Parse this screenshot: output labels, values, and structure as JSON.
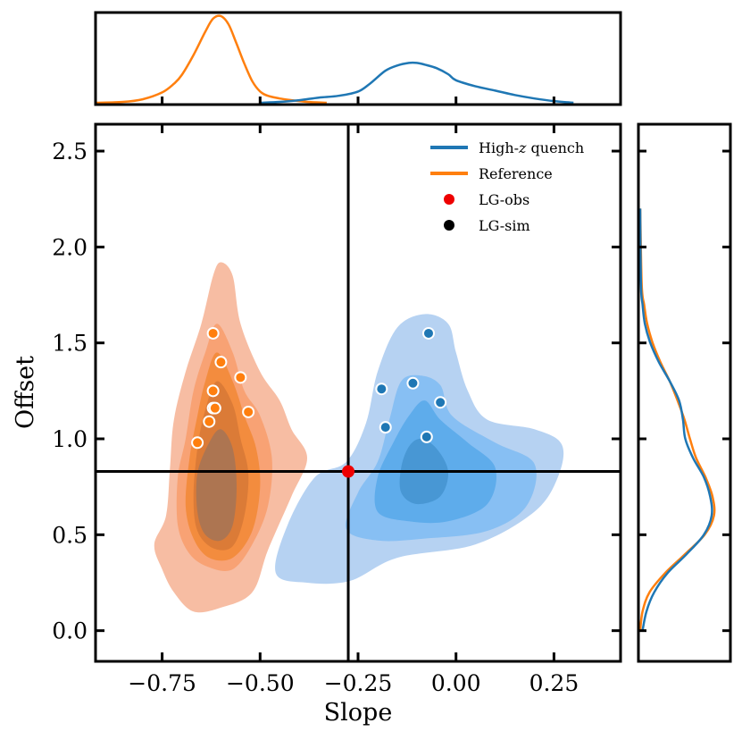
{
  "chart_data": {
    "type": "scatter",
    "xlabel": "Slope",
    "ylabel": "Offset",
    "xlim": [
      -0.92,
      0.42
    ],
    "ylim": [
      -0.16,
      2.64
    ],
    "x_ticks": [
      -0.75,
      -0.5,
      -0.25,
      0.0,
      0.25
    ],
    "x_tick_labels": [
      "−0.75",
      "−0.50",
      "−0.25",
      "0.00",
      "0.25"
    ],
    "y_ticks": [
      0.0,
      0.5,
      1.0,
      1.5,
      2.0,
      2.5
    ],
    "y_tick_labels": [
      "0.0",
      "0.5",
      "1.0",
      "1.5",
      "2.0",
      "2.5"
    ],
    "reference_lines": {
      "slope": -0.275,
      "offset": 0.83
    },
    "legend": {
      "position": "top-right",
      "entries": [
        {
          "label_main": "High-",
          "label_italic": "z",
          "label_rest": " quench",
          "kind": "line",
          "color": "#1f77b4"
        },
        {
          "label_main": "Reference",
          "label_italic": "",
          "label_rest": "",
          "kind": "line",
          "color": "#ff7f0e"
        },
        {
          "label_main": "LG-obs",
          "label_italic": "",
          "label_rest": "",
          "kind": "point",
          "color": "#ee0000"
        },
        {
          "label_main": "LG-sim",
          "label_italic": "",
          "label_rest": "",
          "kind": "point",
          "color": "#000000"
        }
      ]
    },
    "colors": {
      "high_z": "#1f77b4",
      "reference": "#ff7f0e",
      "high_z_fills": [
        "#aecdf1",
        "#82bcf3",
        "#5aaaea",
        "#4695d1"
      ],
      "reference_fills": [
        "#f6b79b",
        "#f7a070",
        "#f28a3a",
        "#d97a36",
        "#a97454"
      ],
      "lg_obs": "#ee0000"
    },
    "series": [
      {
        "name": "LG-sim (Reference)",
        "group": "reference",
        "x": [
          -0.62,
          -0.6,
          -0.62,
          -0.62,
          -0.63,
          -0.66,
          -0.55,
          -0.53,
          -0.615
        ],
        "y": [
          1.55,
          1.4,
          1.25,
          1.16,
          1.09,
          0.98,
          1.32,
          1.14,
          1.16
        ]
      },
      {
        "name": "LG-sim (High-z quench)",
        "group": "high_z",
        "x": [
          -0.07,
          -0.11,
          -0.19,
          -0.04,
          -0.18,
          -0.075
        ],
        "y": [
          1.55,
          1.29,
          1.26,
          1.19,
          1.06,
          1.01
        ]
      },
      {
        "name": "LG-obs",
        "group": "obs",
        "x": [
          -0.275
        ],
        "y": [
          0.83
        ]
      }
    ],
    "contours": [
      {
        "group": "reference",
        "level": 1,
        "points": [
          [
            -0.6,
            1.92
          ],
          [
            -0.57,
            1.85
          ],
          [
            -0.55,
            1.6
          ],
          [
            -0.5,
            1.35
          ],
          [
            -0.45,
            1.2
          ],
          [
            -0.42,
            1.05
          ],
          [
            -0.38,
            0.9
          ],
          [
            -0.42,
            0.7
          ],
          [
            -0.48,
            0.42
          ],
          [
            -0.52,
            0.2
          ],
          [
            -0.6,
            0.12
          ],
          [
            -0.67,
            0.1
          ],
          [
            -0.72,
            0.2
          ],
          [
            -0.75,
            0.32
          ],
          [
            -0.77,
            0.45
          ],
          [
            -0.74,
            0.6
          ],
          [
            -0.73,
            0.85
          ],
          [
            -0.72,
            1.1
          ],
          [
            -0.69,
            1.35
          ],
          [
            -0.65,
            1.6
          ],
          [
            -0.62,
            1.85
          ]
        ]
      },
      {
        "group": "reference",
        "level": 2,
        "points": [
          [
            -0.61,
            1.6
          ],
          [
            -0.57,
            1.45
          ],
          [
            -0.54,
            1.25
          ],
          [
            -0.5,
            1.12
          ],
          [
            -0.47,
            0.9
          ],
          [
            -0.48,
            0.65
          ],
          [
            -0.52,
            0.45
          ],
          [
            -0.57,
            0.32
          ],
          [
            -0.63,
            0.33
          ],
          [
            -0.68,
            0.4
          ],
          [
            -0.71,
            0.55
          ],
          [
            -0.71,
            0.8
          ],
          [
            -0.69,
            1.0
          ],
          [
            -0.67,
            1.25
          ],
          [
            -0.64,
            1.45
          ]
        ]
      },
      {
        "group": "reference",
        "level": 3,
        "points": [
          [
            -0.61,
            1.45
          ],
          [
            -0.57,
            1.3
          ],
          [
            -0.54,
            1.12
          ],
          [
            -0.51,
            0.95
          ],
          [
            -0.5,
            0.75
          ],
          [
            -0.52,
            0.52
          ],
          [
            -0.57,
            0.38
          ],
          [
            -0.63,
            0.38
          ],
          [
            -0.67,
            0.48
          ],
          [
            -0.69,
            0.65
          ],
          [
            -0.68,
            0.9
          ],
          [
            -0.66,
            1.12
          ],
          [
            -0.64,
            1.3
          ]
        ]
      },
      {
        "group": "reference",
        "level": 4,
        "points": [
          [
            -0.61,
            1.3
          ],
          [
            -0.57,
            1.18
          ],
          [
            -0.55,
            1.0
          ],
          [
            -0.53,
            0.82
          ],
          [
            -0.54,
            0.6
          ],
          [
            -0.57,
            0.44
          ],
          [
            -0.62,
            0.43
          ],
          [
            -0.66,
            0.52
          ],
          [
            -0.67,
            0.7
          ],
          [
            -0.66,
            0.95
          ],
          [
            -0.64,
            1.15
          ]
        ]
      },
      {
        "group": "reference",
        "level": 5,
        "points": [
          [
            -0.6,
            1.05
          ],
          [
            -0.57,
            0.95
          ],
          [
            -0.56,
            0.75
          ],
          [
            -0.57,
            0.55
          ],
          [
            -0.6,
            0.47
          ],
          [
            -0.64,
            0.5
          ],
          [
            -0.66,
            0.62
          ],
          [
            -0.66,
            0.82
          ],
          [
            -0.63,
            0.98
          ]
        ]
      },
      {
        "group": "high_z",
        "level": 1,
        "points": [
          [
            -0.08,
            1.65
          ],
          [
            -0.02,
            1.6
          ],
          [
            0.0,
            1.45
          ],
          [
            0.03,
            1.25
          ],
          [
            0.08,
            1.1
          ],
          [
            0.2,
            1.05
          ],
          [
            0.27,
            0.97
          ],
          [
            0.26,
            0.8
          ],
          [
            0.2,
            0.62
          ],
          [
            0.05,
            0.45
          ],
          [
            -0.15,
            0.38
          ],
          [
            -0.27,
            0.26
          ],
          [
            -0.38,
            0.25
          ],
          [
            -0.46,
            0.3
          ],
          [
            -0.43,
            0.55
          ],
          [
            -0.36,
            0.8
          ],
          [
            -0.28,
            0.88
          ],
          [
            -0.23,
            1.08
          ],
          [
            -0.2,
            1.35
          ],
          [
            -0.15,
            1.58
          ]
        ]
      },
      {
        "group": "high_z",
        "level": 2,
        "points": [
          [
            -0.09,
            1.33
          ],
          [
            -0.04,
            1.28
          ],
          [
            -0.01,
            1.12
          ],
          [
            0.1,
            0.98
          ],
          [
            0.2,
            0.87
          ],
          [
            0.18,
            0.65
          ],
          [
            0.08,
            0.52
          ],
          [
            -0.08,
            0.48
          ],
          [
            -0.2,
            0.47
          ],
          [
            -0.28,
            0.53
          ],
          [
            -0.25,
            0.72
          ],
          [
            -0.2,
            0.88
          ],
          [
            -0.17,
            1.1
          ],
          [
            -0.14,
            1.3
          ]
        ]
      },
      {
        "group": "high_z",
        "level": 3,
        "points": [
          [
            -0.08,
            1.2
          ],
          [
            -0.04,
            1.1
          ],
          [
            0.03,
            0.98
          ],
          [
            0.1,
            0.85
          ],
          [
            0.08,
            0.66
          ],
          [
            -0.02,
            0.57
          ],
          [
            -0.12,
            0.57
          ],
          [
            -0.2,
            0.62
          ],
          [
            -0.2,
            0.8
          ],
          [
            -0.16,
            0.98
          ],
          [
            -0.12,
            1.12
          ]
        ]
      },
      {
        "group": "high_z",
        "level": 4,
        "points": [
          [
            -0.09,
            1.0
          ],
          [
            -0.05,
            0.95
          ],
          [
            -0.02,
            0.83
          ],
          [
            -0.04,
            0.7
          ],
          [
            -0.1,
            0.66
          ],
          [
            -0.14,
            0.72
          ],
          [
            -0.14,
            0.85
          ],
          [
            -0.12,
            0.96
          ]
        ]
      }
    ],
    "top_marginal": {
      "axis": "slope",
      "reference": {
        "x": [
          -0.92,
          -0.85,
          -0.8,
          -0.75,
          -0.72,
          -0.7,
          -0.67,
          -0.64,
          -0.62,
          -0.6,
          -0.58,
          -0.56,
          -0.54,
          -0.52,
          -0.5,
          -0.48,
          -0.45,
          -0.42,
          -0.38,
          -0.33
        ],
        "density": [
          0.0,
          0.01,
          0.04,
          0.12,
          0.22,
          0.32,
          0.55,
          0.82,
          0.97,
          1.0,
          0.9,
          0.68,
          0.45,
          0.25,
          0.13,
          0.08,
          0.05,
          0.03,
          0.01,
          0.0
        ]
      },
      "high_z": {
        "x": [
          -0.5,
          -0.45,
          -0.4,
          -0.35,
          -0.3,
          -0.25,
          -0.22,
          -0.18,
          -0.15,
          -0.12,
          -0.1,
          -0.08,
          -0.05,
          -0.02,
          0.0,
          0.05,
          0.1,
          0.15,
          0.2,
          0.25,
          0.3
        ],
        "density": [
          0.0,
          0.01,
          0.03,
          0.06,
          0.08,
          0.13,
          0.22,
          0.37,
          0.43,
          0.46,
          0.46,
          0.44,
          0.4,
          0.33,
          0.26,
          0.19,
          0.14,
          0.09,
          0.05,
          0.02,
          0.0
        ]
      }
    },
    "right_marginal": {
      "axis": "offset",
      "high_z": {
        "y": [
          0.0,
          0.1,
          0.2,
          0.3,
          0.4,
          0.5,
          0.6,
          0.7,
          0.8,
          0.9,
          1.0,
          1.1,
          1.2,
          1.3,
          1.4,
          1.5,
          1.6,
          1.7,
          1.8,
          2.2
        ],
        "density": [
          0.03,
          0.08,
          0.18,
          0.35,
          0.6,
          0.82,
          0.92,
          0.9,
          0.82,
          0.68,
          0.58,
          0.55,
          0.5,
          0.38,
          0.24,
          0.13,
          0.06,
          0.03,
          0.01,
          0.0
        ]
      },
      "reference": {
        "y": [
          0.0,
          0.1,
          0.2,
          0.3,
          0.4,
          0.5,
          0.6,
          0.7,
          0.8,
          0.9,
          1.0,
          1.1,
          1.2,
          1.3,
          1.4,
          1.5,
          1.6,
          1.7,
          1.8,
          2.2
        ],
        "density": [
          0.0,
          0.03,
          0.12,
          0.32,
          0.58,
          0.83,
          0.95,
          0.93,
          0.84,
          0.72,
          0.64,
          0.57,
          0.48,
          0.38,
          0.26,
          0.16,
          0.09,
          0.05,
          0.02,
          0.0
        ]
      }
    }
  }
}
